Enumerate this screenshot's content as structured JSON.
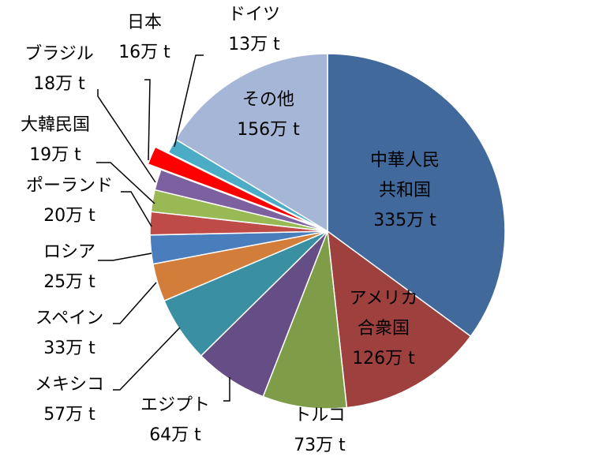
{
  "chart_data": {
    "type": "pie",
    "unit": "万 t",
    "slices": [
      {
        "label": "中華人民共和国",
        "lines": [
          "中華人民",
          "共和国"
        ],
        "value": 335,
        "value_text": "335万 t",
        "color": "#41699c"
      },
      {
        "label": "アメリカ合衆国",
        "lines": [
          "アメリカ",
          "合衆国"
        ],
        "value": 126,
        "value_text": "126万 t",
        "color": "#9e413e"
      },
      {
        "label": "トルコ",
        "lines": [
          "トルコ"
        ],
        "value": 73,
        "value_text": "73万 t",
        "color": "#7f9c48"
      },
      {
        "label": "エジプト",
        "lines": [
          "エジプト"
        ],
        "value": 64,
        "value_text": "64万 t",
        "color": "#654d86"
      },
      {
        "label": "メキシコ",
        "lines": [
          "メキシコ"
        ],
        "value": 57,
        "value_text": "57万 t",
        "color": "#3a8fa3"
      },
      {
        "label": "スペイン",
        "lines": [
          "スペイン"
        ],
        "value": 33,
        "value_text": "33万 t",
        "color": "#d27d39"
      },
      {
        "label": "ロシア",
        "lines": [
          "ロシア"
        ],
        "value": 25,
        "value_text": "25万 t",
        "color": "#4a7dbb"
      },
      {
        "label": "ポーランド",
        "lines": [
          "ポーランド"
        ],
        "value": 20,
        "value_text": "20万 t",
        "color": "#be4b48"
      },
      {
        "label": "大韓民国",
        "lines": [
          "大韓民国"
        ],
        "value": 19,
        "value_text": "19万 t",
        "color": "#98b954"
      },
      {
        "label": "ブラジル",
        "lines": [
          "ブラジル"
        ],
        "value": 18,
        "value_text": "18万 t",
        "color": "#7d60a0"
      },
      {
        "label": "日本",
        "lines": [
          "日本"
        ],
        "value": 16,
        "value_text": "16万 t",
        "color": "#ff0000",
        "exploded": true
      },
      {
        "label": "ドイツ",
        "lines": [
          "ドイツ"
        ],
        "value": 13,
        "value_text": "13万 t",
        "color": "#4bacc6"
      },
      {
        "label": "その他",
        "lines": [
          "その他"
        ],
        "value": 156,
        "value_text": "156万 t",
        "color": "#a5b6d6"
      }
    ]
  }
}
